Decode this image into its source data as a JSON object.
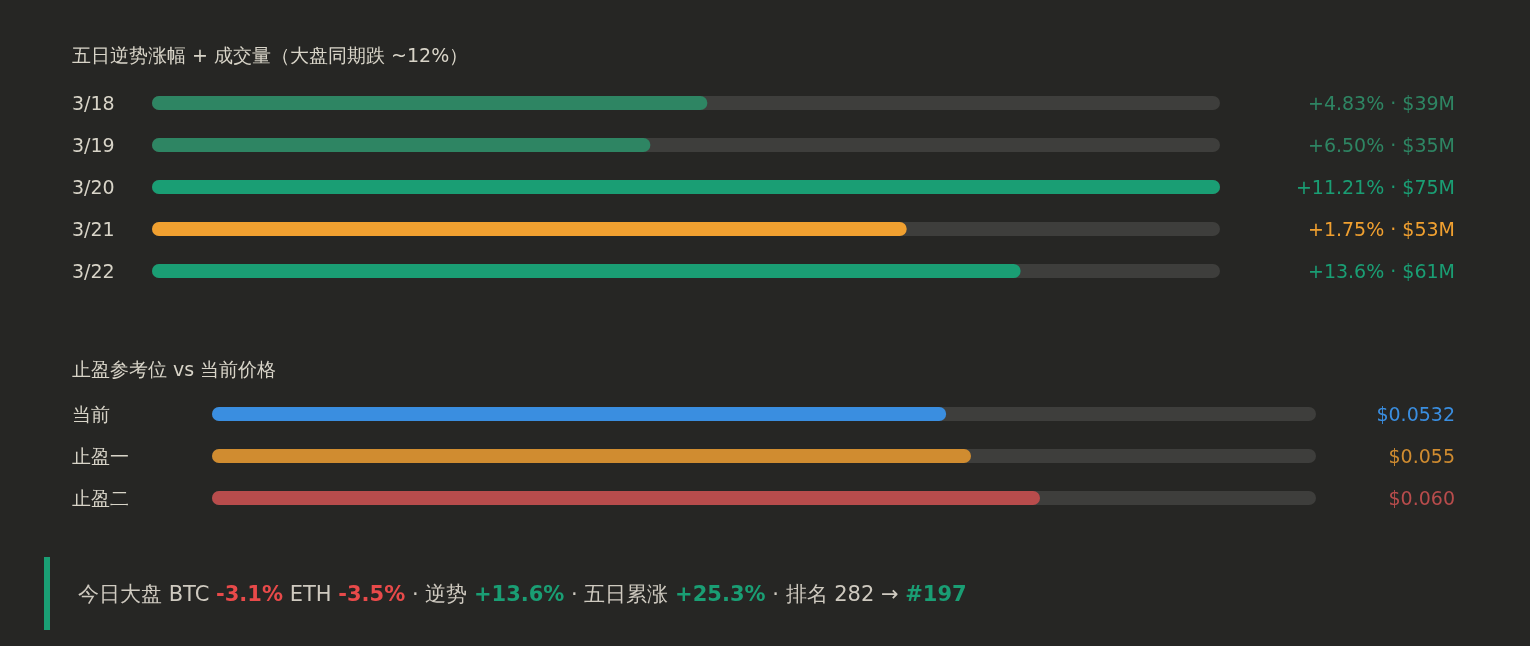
{
  "chart_data": [
    {
      "type": "bar",
      "orientation": "horizontal",
      "title": "五日逆势涨幅 + 成交量（大盘同期跌 ~12%）",
      "categories": [
        "3/18",
        "3/19",
        "3/20",
        "3/21",
        "3/22"
      ],
      "values": [
        39,
        35,
        75,
        53,
        61
      ],
      "annotations": [
        "+4.83% ·",
        "+6.50% ·",
        "+11.21% ·",
        "+1.75% ·",
        "+13.6% ·"
      ],
      "colors": [
        "#2e8563",
        "#2e8563",
        "#1a9e74",
        "#f0a030",
        "#1a9e74"
      ],
      "value_labels": [
        "$39M",
        "$35M",
        "$75M",
        "$53M",
        "$61M"
      ]
    },
    {
      "type": "bar",
      "orientation": "horizontal",
      "title": "止盈参考位 vs 当前价格",
      "categories": [
        "当前",
        "止盈一",
        "止盈二"
      ],
      "values": [
        0.0532,
        0.055,
        0.06
      ],
      "xlim": [
        0,
        0.08
      ],
      "colors": [
        "#3a8ee0",
        "#d08c30",
        "#b84c4c"
      ],
      "value_labels": [
        "$0.0532",
        "$0.055",
        "$0.060"
      ]
    },
    {
      "type": "other",
      "annotations": [
        "今日大盘 BTC ",
        "-3.1%",
        " ETH ",
        "-3.5%",
        " · 逆势 ",
        "+13.6%",
        " · 五日累涨 ",
        "+25.3%",
        " · 排名 282 → ",
        "#197"
      ],
      "colors": [
        "#cfcac0",
        "#e84a4a",
        "#cfcac0",
        "#e84a4a",
        "#cfcac0",
        "#1a9e74",
        "#cfcac0",
        "#1a9e74",
        "#cfcac0",
        "#1a9e74"
      ]
    }
  ]
}
